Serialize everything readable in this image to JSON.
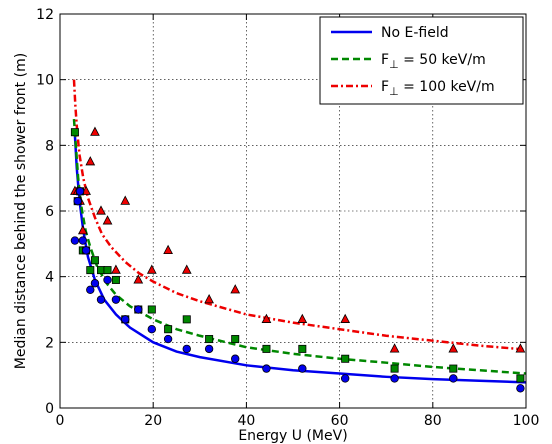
{
  "chart_data": {
    "type": "scatter",
    "title": "",
    "xlabel": "Energy U (MeV)",
    "ylabel": "Median distance behind the shower front (m)",
    "xlim": [
      0,
      100
    ],
    "ylim": [
      0,
      12
    ],
    "xticks": [
      0,
      20,
      40,
      60,
      80,
      100
    ],
    "yticks": [
      0,
      2,
      4,
      6,
      8,
      10,
      12
    ],
    "grid": true,
    "legend_position": "top-right",
    "series": [
      {
        "name": "No E-field",
        "color": "#0000ee",
        "marker": "circle",
        "line_style": "solid",
        "points": [
          [
            3.2,
            5.1
          ],
          [
            3.8,
            6.3
          ],
          [
            4.3,
            6.6
          ],
          [
            4.9,
            5.1
          ],
          [
            5.6,
            4.8
          ],
          [
            6.5,
            3.6
          ],
          [
            7.5,
            3.8
          ],
          [
            8.8,
            3.3
          ],
          [
            10.2,
            3.9
          ],
          [
            12.0,
            3.3
          ],
          [
            14.0,
            2.7
          ],
          [
            16.8,
            3.0
          ],
          [
            19.7,
            2.4
          ],
          [
            23.2,
            2.1
          ],
          [
            27.2,
            1.8
          ],
          [
            32.0,
            1.8
          ],
          [
            37.6,
            1.5
          ],
          [
            44.3,
            1.2
          ],
          [
            52.0,
            1.2
          ],
          [
            61.2,
            0.9
          ],
          [
            71.8,
            0.9
          ],
          [
            84.4,
            0.9
          ],
          [
            98.8,
            0.6
          ]
        ],
        "curve": [
          [
            3.2,
            8.3
          ],
          [
            3.6,
            7.3
          ],
          [
            4.2,
            6.3
          ],
          [
            5.0,
            5.4
          ],
          [
            6.0,
            4.6
          ],
          [
            7.5,
            3.9
          ],
          [
            9.5,
            3.3
          ],
          [
            12.0,
            2.85
          ],
          [
            15.0,
            2.45
          ],
          [
            20.0,
            2.0
          ],
          [
            25.0,
            1.72
          ],
          [
            30.0,
            1.55
          ],
          [
            40.0,
            1.3
          ],
          [
            50.0,
            1.15
          ],
          [
            60.0,
            1.05
          ],
          [
            70.0,
            0.95
          ],
          [
            80.0,
            0.88
          ],
          [
            90.0,
            0.83
          ],
          [
            100.0,
            0.78
          ]
        ]
      },
      {
        "name": "F$_\\perp$ = 50 keV/m",
        "label_text": "F",
        "label_subscript": "⊥",
        "label_rest": " = 50 keV/m",
        "color": "#008800",
        "marker": "square",
        "line_style": "dashed",
        "points": [
          [
            3.2,
            8.4
          ],
          [
            3.8,
            6.3
          ],
          [
            4.3,
            6.6
          ],
          [
            4.9,
            4.8
          ],
          [
            5.6,
            4.8
          ],
          [
            6.5,
            4.2
          ],
          [
            7.5,
            4.5
          ],
          [
            8.8,
            4.2
          ],
          [
            10.2,
            4.2
          ],
          [
            12.0,
            3.9
          ],
          [
            14.0,
            2.7
          ],
          [
            16.8,
            3.0
          ],
          [
            19.7,
            3.0
          ],
          [
            23.2,
            2.4
          ],
          [
            27.2,
            2.7
          ],
          [
            32.0,
            2.1
          ],
          [
            37.6,
            2.1
          ],
          [
            44.3,
            1.8
          ],
          [
            52.0,
            1.8
          ],
          [
            61.2,
            1.5
          ],
          [
            71.8,
            1.2
          ],
          [
            84.4,
            1.2
          ],
          [
            98.8,
            0.9
          ]
        ],
        "curve": [
          [
            3.0,
            8.8
          ],
          [
            3.4,
            8.0
          ],
          [
            3.9,
            7.0
          ],
          [
            4.5,
            6.2
          ],
          [
            5.5,
            5.4
          ],
          [
            6.5,
            4.9
          ],
          [
            8.0,
            4.3
          ],
          [
            10.0,
            3.8
          ],
          [
            12.0,
            3.45
          ],
          [
            15.0,
            3.1
          ],
          [
            20.0,
            2.7
          ],
          [
            25.0,
            2.4
          ],
          [
            30.0,
            2.2
          ],
          [
            40.0,
            1.85
          ],
          [
            50.0,
            1.65
          ],
          [
            60.0,
            1.5
          ],
          [
            70.0,
            1.38
          ],
          [
            80.0,
            1.25
          ],
          [
            90.0,
            1.15
          ],
          [
            100.0,
            1.05
          ]
        ]
      },
      {
        "name": "F$_\\perp$ = 100 keV/m",
        "label_text": "F",
        "label_subscript": "⊥",
        "label_rest": " = 100 keV/m",
        "color": "#ee0000",
        "marker": "triangle",
        "line_style": "dashdot",
        "points": [
          [
            3.2,
            6.6
          ],
          [
            3.8,
            6.6
          ],
          [
            4.3,
            6.3
          ],
          [
            4.9,
            5.4
          ],
          [
            5.6,
            6.6
          ],
          [
            6.5,
            7.5
          ],
          [
            7.5,
            8.4
          ],
          [
            8.8,
            6.0
          ],
          [
            10.2,
            5.7
          ],
          [
            12.0,
            4.2
          ],
          [
            14.0,
            6.3
          ],
          [
            16.8,
            3.9
          ],
          [
            19.7,
            4.2
          ],
          [
            23.2,
            4.8
          ],
          [
            27.2,
            4.2
          ],
          [
            32.0,
            3.3
          ],
          [
            37.6,
            3.6
          ],
          [
            44.3,
            2.7
          ],
          [
            52.0,
            2.7
          ],
          [
            61.2,
            2.7
          ],
          [
            71.8,
            1.8
          ],
          [
            84.4,
            1.8
          ],
          [
            98.8,
            1.8
          ]
        ],
        "curve": [
          [
            3.0,
            10.0
          ],
          [
            3.3,
            9.2
          ],
          [
            3.7,
            8.4
          ],
          [
            4.2,
            7.7
          ],
          [
            5.0,
            7.0
          ],
          [
            6.0,
            6.4
          ],
          [
            7.5,
            5.8
          ],
          [
            9.0,
            5.3
          ],
          [
            11.0,
            4.9
          ],
          [
            14.0,
            4.45
          ],
          [
            17.0,
            4.1
          ],
          [
            20.0,
            3.85
          ],
          [
            25.0,
            3.5
          ],
          [
            30.0,
            3.25
          ],
          [
            40.0,
            2.85
          ],
          [
            50.0,
            2.6
          ],
          [
            60.0,
            2.4
          ],
          [
            70.0,
            2.2
          ],
          [
            80.0,
            2.05
          ],
          [
            90.0,
            1.9
          ],
          [
            100.0,
            1.78
          ]
        ]
      }
    ]
  }
}
